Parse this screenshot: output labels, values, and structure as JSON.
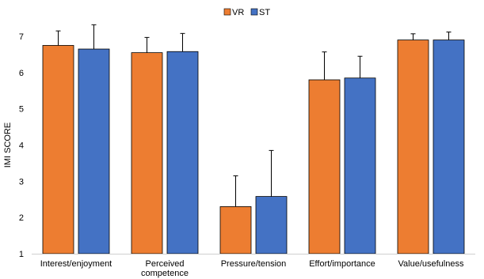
{
  "chart_data": {
    "type": "bar",
    "title": "",
    "xlabel": "",
    "ylabel": "IMI SCORE",
    "ylim": [
      1,
      7
    ],
    "yticks": [
      1,
      2,
      3,
      4,
      5,
      6,
      7
    ],
    "grid": false,
    "legend_position": "top-center",
    "error_bars": true,
    "categories": [
      [
        "Interest/enjoyment"
      ],
      [
        "Perceived",
        "competence"
      ],
      [
        "Pressure/tension"
      ],
      [
        "Effort/importance"
      ],
      [
        "Value/usefulness"
      ]
    ],
    "series": [
      {
        "name": "VR",
        "color": "#ED7D31",
        "values": [
          6.75,
          6.55,
          2.3,
          5.8,
          6.9
        ],
        "errors": [
          0.4,
          0.42,
          0.85,
          0.77,
          0.17
        ]
      },
      {
        "name": "ST",
        "color": "#4472C4",
        "values": [
          6.65,
          6.58,
          2.58,
          5.85,
          6.9
        ],
        "errors": [
          0.67,
          0.5,
          1.27,
          0.6,
          0.22
        ]
      }
    ]
  }
}
